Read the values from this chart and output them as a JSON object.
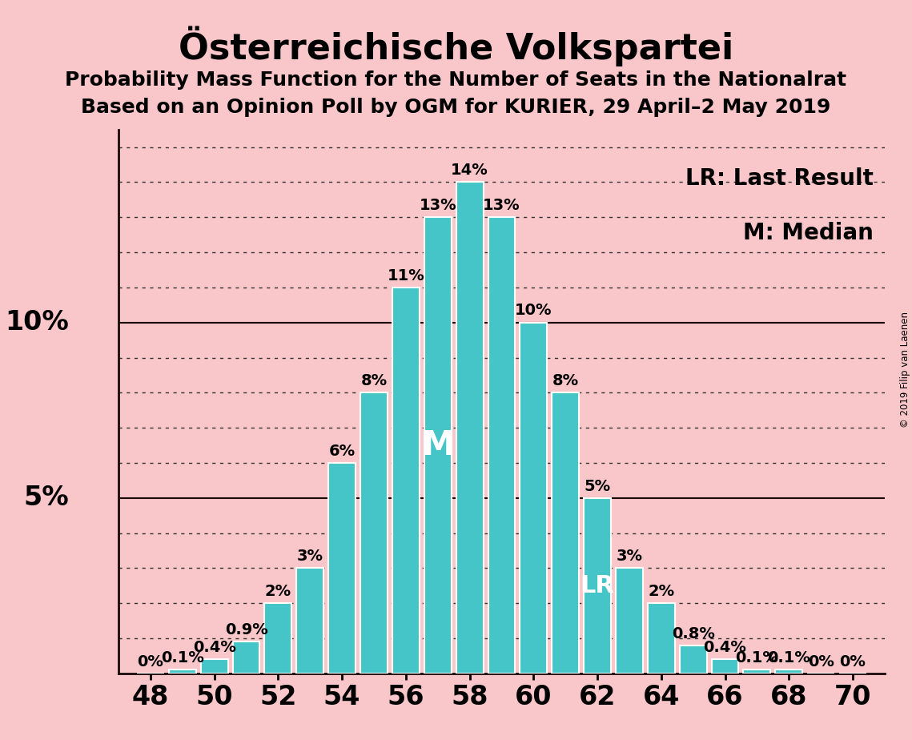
{
  "title": "Österreichische Volkspartei",
  "subtitle1": "Probability Mass Function for the Number of Seats in the Nationalrat",
  "subtitle2": "Based on an Opinion Poll by OGM for KURIER, 29 April–2 May 2019",
  "copyright": "© 2019 Filip van Laenen",
  "background_color": "#f9c6c9",
  "bar_color": "#45c5c8",
  "bar_edge_color": "#ffffff",
  "seats": [
    48,
    49,
    50,
    51,
    52,
    53,
    54,
    55,
    56,
    57,
    58,
    59,
    60,
    61,
    62,
    63,
    64,
    65,
    66,
    67,
    68,
    69,
    70
  ],
  "probabilities": [
    0.0,
    0.1,
    0.4,
    0.9,
    2.0,
    3.0,
    6.0,
    8.0,
    11.0,
    13.0,
    14.0,
    13.0,
    10.0,
    8.0,
    5.0,
    3.0,
    2.0,
    0.8,
    0.4,
    0.1,
    0.1,
    0.0,
    0.0
  ],
  "labels": [
    "0%",
    "0.1%",
    "0.4%",
    "0.9%",
    "2%",
    "3%",
    "6%",
    "8%",
    "11%",
    "13%",
    "14%",
    "13%",
    "10%",
    "8%",
    "5%",
    "3%",
    "2%",
    "0.8%",
    "0.4%",
    "0.1%",
    "0.1%",
    "0%",
    "0%"
  ],
  "median_seat": 57,
  "last_result_seat": 62,
  "legend_lr": "LR: Last Result",
  "legend_m": "M: Median",
  "ylim": [
    0,
    15.5
  ],
  "xtick_step": 2,
  "xlabel_start": 48,
  "xlabel_end": 70,
  "title_fontsize": 32,
  "subtitle_fontsize": 18,
  "axis_label_fontsize": 24,
  "bar_label_fontsize": 14,
  "legend_fontsize": 20,
  "text_color": "#000000",
  "grid_dotted_color": "#333333",
  "grid_solid_color": "#1a0a0a",
  "special_label_color": "#ffffff",
  "solid_grid_levels": [
    5,
    10
  ],
  "dotted_grid_levels": [
    1,
    2,
    3,
    4,
    6,
    7,
    8,
    9,
    11,
    12,
    13,
    14,
    15
  ]
}
